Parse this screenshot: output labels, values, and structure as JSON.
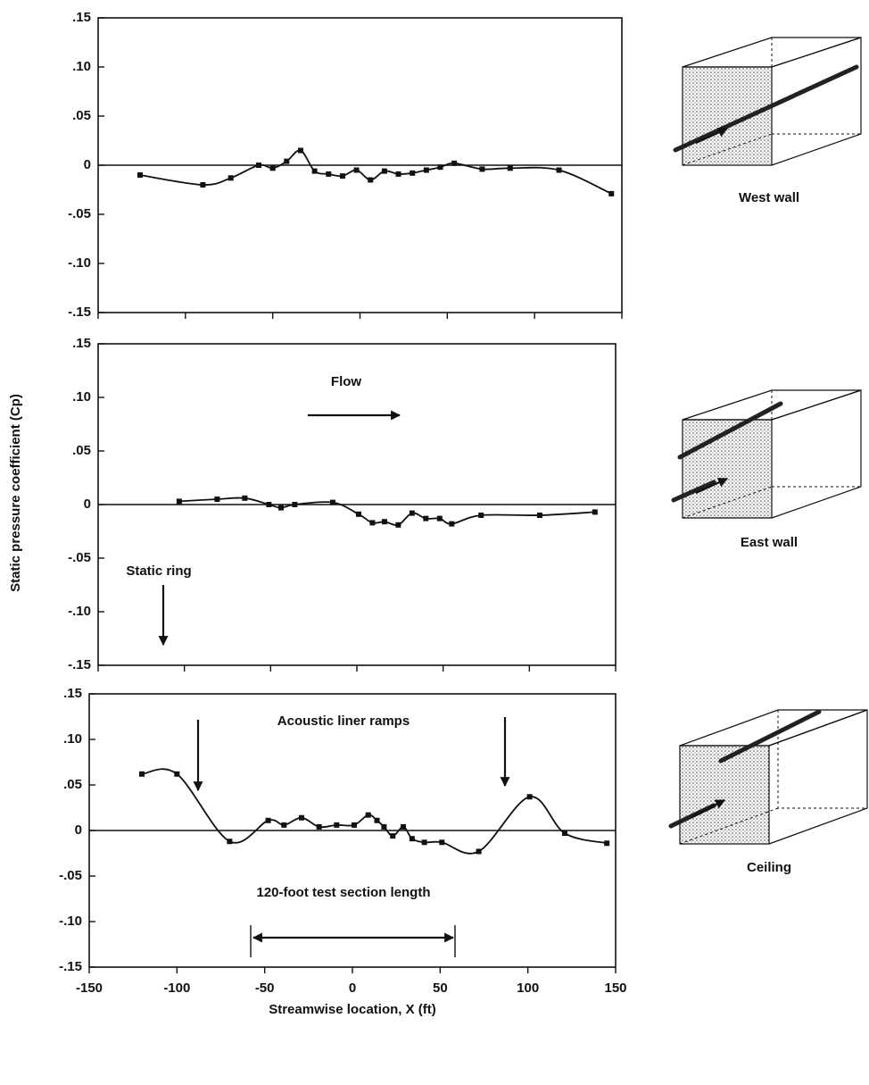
{
  "chart_data": [
    {
      "type": "line",
      "caption": "West wall",
      "x": [
        -126,
        -90,
        -74,
        -58,
        -50,
        -42,
        -34,
        -26,
        -18,
        -10,
        -2,
        6,
        14,
        22,
        30,
        38,
        46,
        54,
        70,
        86,
        114,
        144
      ],
      "values": [
        -0.01,
        -0.02,
        -0.013,
        0,
        -0.003,
        0.004,
        0.015,
        -0.006,
        -0.009,
        -0.011,
        -0.005,
        -0.015,
        -0.006,
        -0.009,
        -0.008,
        -0.005,
        -0.002,
        0.002,
        -0.004,
        -0.003,
        -0.005,
        -0.029
      ],
      "color": "#111111",
      "xlim": [
        -150,
        150
      ],
      "xticks": [
        -150,
        -100,
        -50,
        0,
        50,
        100,
        150
      ],
      "xtick_labels": false,
      "ylim": [
        -0.15,
        0.15
      ],
      "yticks": [
        {
          "value": 0.15,
          "label": ".15"
        },
        {
          "value": 0.1,
          "label": ".10"
        },
        {
          "value": 0.05,
          "label": ".05"
        },
        0,
        {
          "value": -0.05,
          "label": "-.05"
        },
        {
          "value": -0.1,
          "label": "-.10"
        },
        {
          "value": -0.15,
          "label": "-.15"
        }
      ]
    },
    {
      "type": "line",
      "caption": "East wall",
      "ylabel": "Static pressure coefficient (Cp)",
      "annotations": [
        "Flow",
        "Static ring"
      ],
      "x": [
        -103,
        -81,
        -65,
        -51,
        -44,
        -36,
        -14,
        1,
        9,
        16,
        24,
        32,
        40,
        48,
        55,
        72,
        106,
        138
      ],
      "values": [
        0.003,
        0.005,
        0.006,
        0,
        -0.003,
        0,
        0.002,
        -0.009,
        -0.017,
        -0.016,
        -0.019,
        -0.008,
        -0.013,
        -0.013,
        -0.018,
        -0.01,
        -0.01,
        -0.007
      ],
      "color": "#111111",
      "xlim": [
        -150,
        150
      ],
      "xticks": [
        -150,
        -100,
        -50,
        0,
        50,
        100,
        150
      ],
      "xtick_labels": false,
      "ylim": [
        -0.15,
        0.15
      ],
      "yticks": [
        {
          "value": 0.15,
          "label": ".15"
        },
        {
          "value": 0.1,
          "label": ".10"
        },
        {
          "value": 0.05,
          "label": ".05"
        },
        0,
        {
          "value": -0.05,
          "label": "-.05"
        },
        {
          "value": -0.1,
          "label": "-.10"
        },
        {
          "value": -0.15,
          "label": "-.15"
        }
      ]
    },
    {
      "type": "line",
      "caption": "Ceiling",
      "xlabel": "Streamwise location, X (ft)",
      "annotations": [
        "Acoustic liner ramps",
        "120-foot test section length"
      ],
      "x": [
        -120,
        -100,
        -70,
        -48,
        -39,
        -29,
        -19,
        -9,
        1,
        9,
        14,
        18,
        23,
        29,
        34,
        41,
        51,
        72,
        101,
        121,
        145
      ],
      "values": [
        0.062,
        0.062,
        -0.012,
        0.011,
        0.006,
        0.014,
        0.004,
        0.006,
        0.006,
        0.017,
        0.011,
        0.004,
        -0.006,
        0.004,
        -0.009,
        -0.013,
        -0.013,
        -0.023,
        0.037,
        -0.003,
        -0.014
      ],
      "color": "#111111",
      "xlim": [
        -150,
        150
      ],
      "xticks": [
        -150,
        -100,
        -50,
        0,
        50,
        100,
        150
      ],
      "xtick_labels": true,
      "ylim": [
        -0.15,
        0.15
      ],
      "yticks": [
        {
          "value": 0.15,
          "label": ".15"
        },
        {
          "value": 0.1,
          "label": ".10"
        },
        {
          "value": 0.05,
          "label": ".05"
        },
        0,
        {
          "value": -0.05,
          "label": "-.05"
        },
        {
          "value": -0.1,
          "label": "-.10"
        },
        {
          "value": -0.15,
          "label": "-.15"
        }
      ]
    }
  ]
}
